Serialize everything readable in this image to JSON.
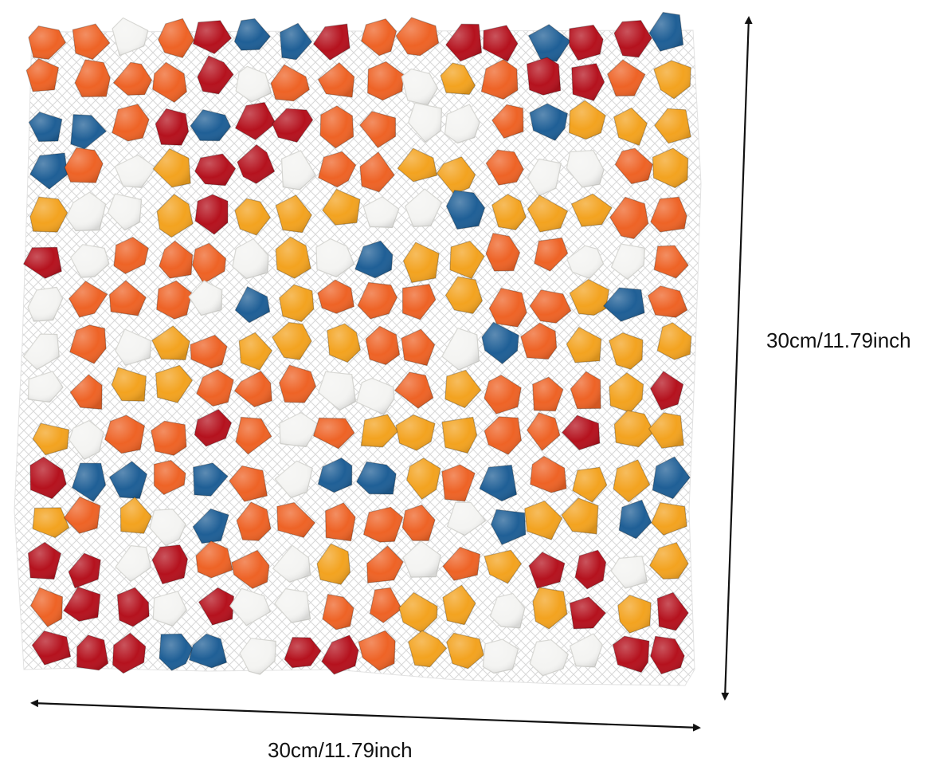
{
  "image": {
    "subject": "mosaic-tile-sheet",
    "tile_colors": {
      "red": "#b5121e",
      "orange": "#ee6326",
      "yellow": "#f3a320",
      "white": "#f4f4f2",
      "blue": "#1f5f96"
    },
    "mesh_color": "#dcdcdc",
    "arrow_color": "#111111"
  },
  "dimensions": {
    "height_label": "30cm/11.79inch",
    "width_label": "30cm/11.79inch"
  }
}
